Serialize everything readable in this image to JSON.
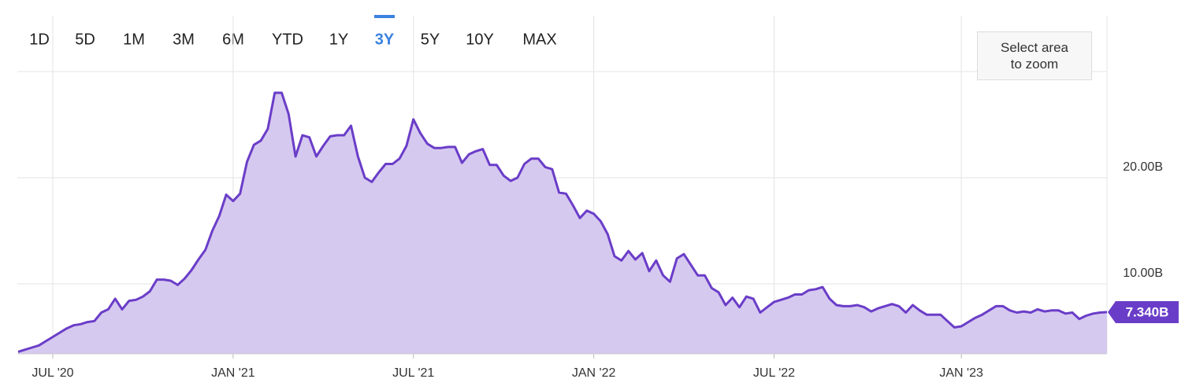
{
  "controls": {
    "ranges": [
      "1D",
      "5D",
      "1M",
      "3M",
      "6M",
      "YTD",
      "1Y",
      "3Y",
      "5Y",
      "10Y",
      "MAX"
    ],
    "active": 7,
    "zoom_button": "Select area to zoom"
  },
  "chart_data": {
    "type": "area",
    "categories": [
      null,
      null,
      null,
      null,
      null,
      "JUL '20",
      null,
      null,
      null,
      null,
      null,
      null,
      null,
      null,
      null,
      null,
      null,
      null,
      null,
      null,
      null,
      null,
      null,
      null,
      null,
      null,
      null,
      null,
      null,
      null,
      null,
      "JAN '21",
      null,
      null,
      null,
      null,
      null,
      null,
      null,
      null,
      null,
      null,
      null,
      null,
      null,
      null,
      null,
      null,
      null,
      null,
      null,
      null,
      null,
      null,
      null,
      null,
      null,
      "JUL '21",
      null,
      null,
      null,
      null,
      null,
      null,
      null,
      null,
      null,
      null,
      null,
      null,
      null,
      null,
      null,
      null,
      null,
      null,
      null,
      null,
      null,
      null,
      null,
      null,
      null,
      "JAN '22",
      null,
      null,
      null,
      null,
      null,
      null,
      null,
      null,
      null,
      null,
      null,
      null,
      null,
      null,
      null,
      null,
      null,
      null,
      null,
      null,
      null,
      null,
      null,
      null,
      null,
      "JUL '22",
      null,
      null,
      null,
      null,
      null,
      null,
      null,
      null,
      null,
      null,
      null,
      null,
      null,
      null,
      null,
      null,
      null,
      null,
      null,
      null,
      null,
      null,
      null,
      null,
      null,
      null,
      "JAN '23",
      null,
      null,
      null,
      null,
      null,
      null,
      null,
      null,
      null,
      null,
      null,
      null,
      null,
      null,
      null,
      null,
      null,
      null,
      null,
      null,
      null
    ],
    "values": [
      3.6,
      3.8,
      4.0,
      4.2,
      4.6,
      5.0,
      5.4,
      5.8,
      6.1,
      6.2,
      6.4,
      6.5,
      7.3,
      7.6,
      8.6,
      7.6,
      8.4,
      8.5,
      8.8,
      9.3,
      10.4,
      10.4,
      10.3,
      9.9,
      10.5,
      11.3,
      12.3,
      13.2,
      15.0,
      16.4,
      18.4,
      17.8,
      18.5,
      21.5,
      23.1,
      23.5,
      24.6,
      28.0,
      28.0,
      26.0,
      22.0,
      24.0,
      23.8,
      22.0,
      23.0,
      23.9,
      24.0,
      24.0,
      24.9,
      22.0,
      20.0,
      19.6,
      20.5,
      21.3,
      21.3,
      21.8,
      23.0,
      25.5,
      24.2,
      23.2,
      22.8,
      22.8,
      22.9,
      22.9,
      21.4,
      22.2,
      22.5,
      22.7,
      21.2,
      21.2,
      20.2,
      19.7,
      20.0,
      21.3,
      21.8,
      21.8,
      21.0,
      20.8,
      18.6,
      18.5,
      17.4,
      16.2,
      16.9,
      16.6,
      15.9,
      14.7,
      12.6,
      12.2,
      13.1,
      12.3,
      12.9,
      11.2,
      12.2,
      10.8,
      10.2,
      12.4,
      12.8,
      11.8,
      10.8,
      10.8,
      9.6,
      9.2,
      8.0,
      8.7,
      7.8,
      8.8,
      8.6,
      7.3,
      7.8,
      8.3,
      8.5,
      8.7,
      9.0,
      9.0,
      9.4,
      9.5,
      9.7,
      8.6,
      8.0,
      7.9,
      7.9,
      8.0,
      7.8,
      7.4,
      7.7,
      7.9,
      8.1,
      7.9,
      7.3,
      8.0,
      7.5,
      7.1,
      7.1,
      7.1,
      6.5,
      5.9,
      6.0,
      6.4,
      6.8,
      7.1,
      7.5,
      7.9,
      7.9,
      7.5,
      7.3,
      7.4,
      7.3,
      7.6,
      7.4,
      7.5,
      7.5,
      7.2,
      7.3,
      6.7,
      7.0,
      7.2,
      7.3,
      7.34
    ],
    "color": "#6a3dc8",
    "fill": "#d6c9f0",
    "current_value": {
      "value": 7.34,
      "label": "7.340B"
    },
    "ylim": [
      3.41,
      35.26
    ],
    "yticks": [
      {
        "value": 10,
        "label": "10.00B"
      },
      {
        "value": 20,
        "label": "20.00B"
      }
    ],
    "grid": true
  }
}
